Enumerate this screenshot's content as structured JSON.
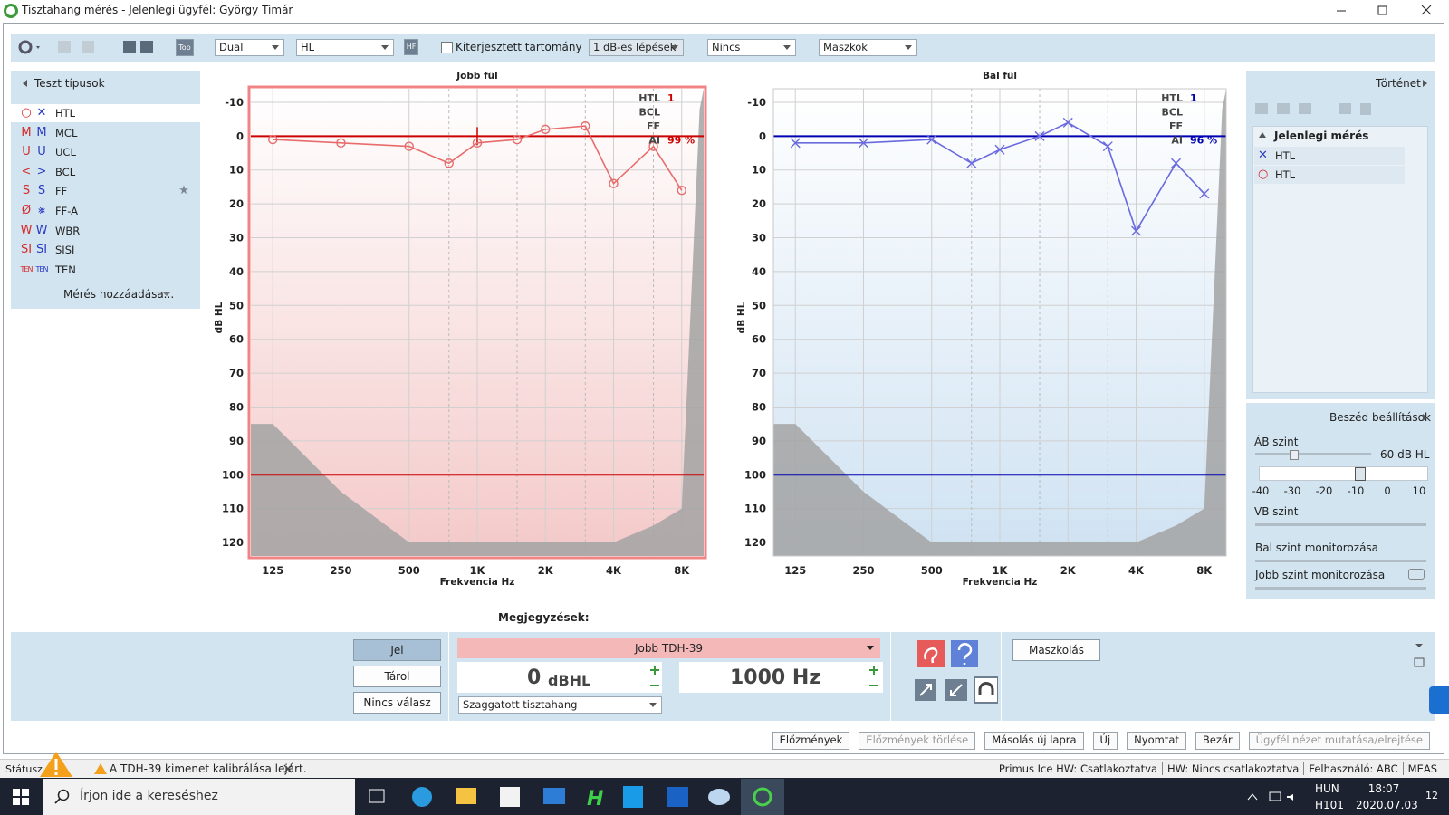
{
  "window": {
    "title": "Tisztahang mérés - Jelenlegi ügyfél: György Timár"
  },
  "toolbar": {
    "top": "Top",
    "mode": "Dual",
    "scale": "HL",
    "hf": "HF",
    "extended_range": "Kiterjesztett tartomány",
    "steps": "1 dB-es lépések",
    "masking": "Nincs",
    "masks": "Maszkok"
  },
  "test_types": {
    "title": "Teszt típusok",
    "right_color": "#d42a2a",
    "left_color": "#2a3cc0",
    "items": [
      {
        "right": "○",
        "left": "✕",
        "label": "HTL"
      },
      {
        "right": "M",
        "left": "M",
        "label": "MCL"
      },
      {
        "right": "U",
        "left": "U",
        "label": "UCL"
      },
      {
        "right": "<",
        "left": ">",
        "label": "BCL"
      },
      {
        "right": "S",
        "left": "S",
        "label": "FF",
        "starred": true
      },
      {
        "right": "Ø",
        "left": "⨳",
        "label": "FF-A"
      },
      {
        "right": "W",
        "left": "W",
        "label": "WBR"
      },
      {
        "right": "SI",
        "left": "SI",
        "label": "SISI"
      },
      {
        "right": "TEN",
        "left": "TEN",
        "label": "TEN"
      }
    ],
    "add": "Mérés hozzáadása..."
  },
  "chart_data": [
    {
      "type": "line",
      "title": "Jobb fül",
      "xlabel": "Frekvencia Hz",
      "ylabel": "dB HL",
      "x": [
        125,
        250,
        500,
        750,
        1000,
        1500,
        2000,
        3000,
        4000,
        6000,
        8000
      ],
      "series": [
        {
          "color": "#e86c6c",
          "marker": "circle",
          "values": [
            1,
            2,
            3,
            8,
            2,
            1,
            -2,
            -3,
            14,
            3,
            16
          ]
        }
      ],
      "xscale": "log",
      "xlim": [
        100,
        10000
      ],
      "ylim": [
        -14,
        124
      ],
      "y_inverted": true,
      "xticks": [
        125,
        250,
        500,
        {
          "value": 1000,
          "label": "1K"
        },
        {
          "value": 2000,
          "label": "2K"
        },
        {
          "value": 4000,
          "label": "4K"
        },
        {
          "value": 8000,
          "label": "8K"
        }
      ],
      "minor_xticks": [
        750,
        1500,
        3000,
        6000
      ],
      "yticks": [
        -10,
        0,
        10,
        20,
        30,
        40,
        50,
        60,
        70,
        80,
        90,
        100,
        110,
        120
      ],
      "grid": true,
      "reference_lines": [
        0,
        100
      ],
      "reference_color": "#cc0000",
      "limit_area": {
        "x": [
          100,
          125,
          250,
          500,
          4000,
          6000,
          8000,
          9600,
          10000,
          10000,
          100
        ],
        "y": [
          85,
          85,
          105,
          120,
          120,
          115,
          110,
          -8,
          -14,
          124,
          124
        ],
        "color": "#a3a3a3"
      },
      "background": "#f4c9c9",
      "border_color": "#f08484",
      "active": true,
      "cursor": {
        "x": 1000,
        "y": 0
      },
      "summary": [
        {
          "label": "HTL",
          "value": "1"
        },
        {
          "label": "BCL"
        },
        {
          "label": "FF"
        },
        {
          "label": "AI",
          "value": "99 %"
        }
      ]
    },
    {
      "type": "line",
      "title": "Bal fül",
      "xlabel": "Frekvencia Hz",
      "ylabel": "dB HL",
      "x": [
        125,
        250,
        500,
        750,
        1000,
        1500,
        2000,
        3000,
        4000,
        6000,
        8000
      ],
      "series": [
        {
          "color": "#6a6ae0",
          "marker": "x",
          "values": [
            2,
            2,
            1,
            8,
            4,
            0,
            -4,
            3,
            28,
            8,
            17
          ]
        }
      ],
      "xscale": "log",
      "xlim": [
        100,
        10000
      ],
      "ylim": [
        -14,
        124
      ],
      "y_inverted": true,
      "xticks": [
        125,
        250,
        500,
        {
          "value": 1000,
          "label": "1K"
        },
        {
          "value": 2000,
          "label": "2K"
        },
        {
          "value": 4000,
          "label": "4K"
        },
        {
          "value": 8000,
          "label": "8K"
        }
      ],
      "minor_xticks": [
        750,
        1500,
        3000,
        6000
      ],
      "yticks": [
        -10,
        0,
        10,
        20,
        30,
        40,
        50,
        60,
        70,
        80,
        90,
        100,
        110,
        120
      ],
      "grid": true,
      "reference_lines": [
        0,
        100
      ],
      "reference_color": "#0000b0",
      "limit_area": {
        "x": [
          100,
          125,
          250,
          500,
          4000,
          6000,
          8000,
          9600,
          10000,
          10000,
          100
        ],
        "y": [
          85,
          85,
          105,
          120,
          120,
          115,
          110,
          -8,
          -14,
          124,
          124
        ],
        "color": "#a3a3a3"
      },
      "background": "#cfe2f2",
      "border_color": "#c8c8c8",
      "active": false,
      "summary": [
        {
          "label": "HTL",
          "value": "1"
        },
        {
          "label": "BCL"
        },
        {
          "label": "FF"
        },
        {
          "label": "AI",
          "value": "96 %"
        }
      ]
    }
  ],
  "history": {
    "title": "Történet",
    "group": "Jelenlegi mérés",
    "items": [
      {
        "symbol": "✕",
        "label": "HTL",
        "color": "#2a3cc0"
      },
      {
        "symbol": "○",
        "label": "HTL",
        "color": "#d42a2a"
      }
    ]
  },
  "speech": {
    "title": "Beszéd beállítások",
    "ab_level": "ÁB szint",
    "ab_value": "60 dB HL",
    "scale": [
      -40,
      -30,
      -20,
      -10,
      0,
      10
    ],
    "vb_level": "VB szint",
    "left_monitor": "Bal szint monitorozása",
    "right_monitor": "Jobb szint monitorozása"
  },
  "notes": "Megjegyzések:",
  "signal": {
    "buttons": [
      "Jel",
      "Tárol",
      "Nincs válasz"
    ],
    "transducer": "Jobb TDH-39",
    "level": "0",
    "level_unit": "dBHL",
    "frequency": "1000 Hz",
    "stimulus": "Szaggatott tisztahang",
    "masking": "Maszkolás"
  },
  "buttons": [
    {
      "label": "Előzmények",
      "enabled": true
    },
    {
      "label": "Előzmények törlése",
      "enabled": false
    },
    {
      "label": "Másolás új lapra",
      "enabled": true
    },
    {
      "label": "Új",
      "enabled": true
    },
    {
      "label": "Nyomtat",
      "enabled": true
    },
    {
      "label": "Bezár",
      "enabled": true
    },
    {
      "label": "Ügyfél nézet mutatása/elrejtése",
      "enabled": false
    }
  ],
  "status": {
    "label": "Státusz",
    "warning": "A TDH-39 kimenet kalibrálása lejárt.",
    "items": [
      "Primus Ice HW: Csatlakoztatva",
      "HW: Nincs csatlakoztatva",
      "Felhasználó: ABC",
      "MEAS"
    ]
  },
  "taskbar": {
    "search": "Írjon ide a kereséshez",
    "language": "HUN",
    "layout": "H101",
    "time": "18:07",
    "date": "2020.07.03",
    "notifications": "12"
  }
}
